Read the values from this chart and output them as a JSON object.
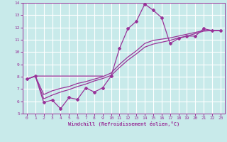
{
  "background_color": "#c8eaea",
  "grid_color": "#b0d8d8",
  "line_color": "#993399",
  "xlabel": "Windchill (Refroidissement éolien,°C)",
  "xlim": [
    -0.5,
    23.5
  ],
  "ylim": [
    5,
    14
  ],
  "xticks": [
    0,
    1,
    2,
    3,
    4,
    5,
    6,
    7,
    8,
    9,
    10,
    11,
    12,
    13,
    14,
    15,
    16,
    17,
    18,
    19,
    20,
    21,
    22,
    23
  ],
  "yticks": [
    5,
    6,
    7,
    8,
    9,
    10,
    11,
    12,
    13,
    14
  ],
  "line_flat_x": [
    0,
    1,
    2,
    3,
    4,
    5,
    6,
    7,
    8,
    9
  ],
  "line_flat_y": [
    7.8,
    8.05,
    8.05,
    8.05,
    8.05,
    8.05,
    8.05,
    8.05,
    8.05,
    8.05
  ],
  "line_jagged_x": [
    0,
    1,
    2,
    3,
    4,
    5,
    6,
    7,
    8,
    9,
    10,
    11,
    12,
    13,
    14,
    15,
    16,
    17,
    18,
    19,
    20,
    21,
    22,
    23
  ],
  "line_jagged_y": [
    7.8,
    8.05,
    5.9,
    6.1,
    5.4,
    6.3,
    6.15,
    7.1,
    6.75,
    7.1,
    8.05,
    10.3,
    11.9,
    12.5,
    13.9,
    13.4,
    12.8,
    10.7,
    11.1,
    11.3,
    11.3,
    11.9,
    11.75,
    11.75
  ],
  "line_smooth1_x": [
    0,
    1,
    2,
    3,
    4,
    5,
    6,
    7,
    8,
    9,
    10,
    11,
    12,
    13,
    14,
    15,
    16,
    17,
    18,
    19,
    20,
    21,
    22,
    23
  ],
  "line_smooth1_y": [
    7.8,
    8.05,
    6.55,
    6.85,
    7.05,
    7.2,
    7.45,
    7.6,
    7.8,
    8.0,
    8.3,
    9.0,
    9.6,
    10.1,
    10.7,
    10.95,
    11.05,
    11.15,
    11.3,
    11.45,
    11.6,
    11.75,
    11.75,
    11.75
  ],
  "line_smooth2_x": [
    0,
    1,
    2,
    3,
    4,
    5,
    6,
    7,
    8,
    9,
    10,
    11,
    12,
    13,
    14,
    15,
    16,
    17,
    18,
    19,
    20,
    21,
    22,
    23
  ],
  "line_smooth2_y": [
    7.8,
    8.05,
    6.2,
    6.5,
    6.75,
    6.95,
    7.2,
    7.4,
    7.65,
    7.85,
    8.1,
    8.75,
    9.35,
    9.85,
    10.4,
    10.65,
    10.8,
    10.95,
    11.15,
    11.3,
    11.5,
    11.7,
    11.75,
    11.75
  ]
}
